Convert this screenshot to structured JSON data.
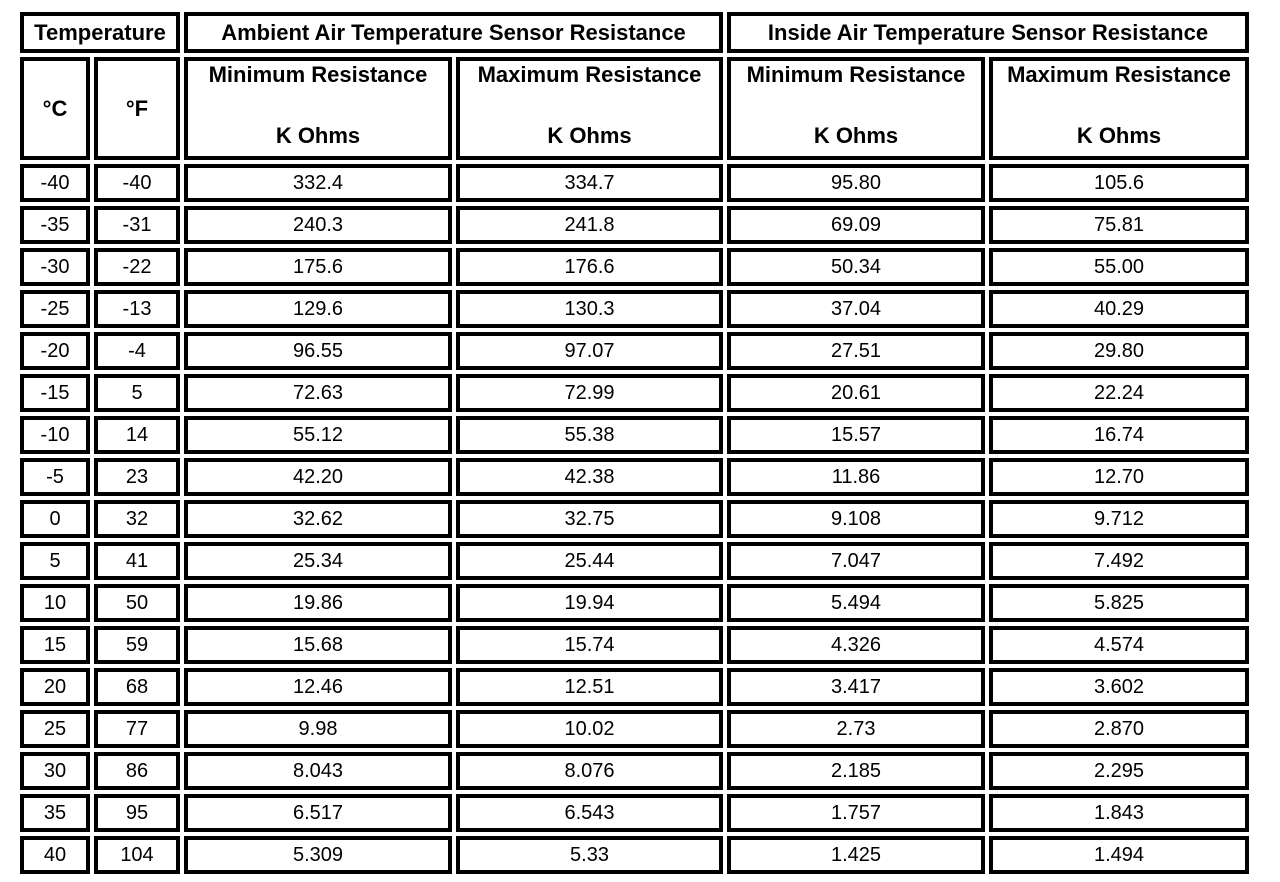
{
  "table": {
    "header_groups": [
      {
        "label": "Temperature"
      },
      {
        "label": "Ambient Air Temperature Sensor Resistance"
      },
      {
        "label": "Inside Air Temperature Sensor Resistance"
      }
    ],
    "subheaders": {
      "celsius": "°C",
      "fahrenheit": "°F",
      "ambient_min_title": "Minimum Resistance",
      "ambient_min_unit": "K Ohms",
      "ambient_max_title": "Maximum Resistance",
      "ambient_max_unit": "K Ohms",
      "inside_min_title": "Minimum Resistance",
      "inside_min_unit": "K Ohms",
      "inside_max_title": "Maximum Resistance",
      "inside_max_unit": "K Ohms"
    },
    "rows": [
      [
        "-40",
        "-40",
        "332.4",
        "334.7",
        "95.80",
        "105.6"
      ],
      [
        "-35",
        "-31",
        "240.3",
        "241.8",
        "69.09",
        "75.81"
      ],
      [
        "-30",
        "-22",
        "175.6",
        "176.6",
        "50.34",
        "55.00"
      ],
      [
        "-25",
        "-13",
        "129.6",
        "130.3",
        "37.04",
        "40.29"
      ],
      [
        "-20",
        "-4",
        "96.55",
        "97.07",
        "27.51",
        "29.80"
      ],
      [
        "-15",
        "5",
        "72.63",
        "72.99",
        "20.61",
        "22.24"
      ],
      [
        "-10",
        "14",
        "55.12",
        "55.38",
        "15.57",
        "16.74"
      ],
      [
        "-5",
        "23",
        "42.20",
        "42.38",
        "11.86",
        "12.70"
      ],
      [
        "0",
        "32",
        "32.62",
        "32.75",
        "9.108",
        "9.712"
      ],
      [
        "5",
        "41",
        "25.34",
        "25.44",
        "7.047",
        "7.492"
      ],
      [
        "10",
        "50",
        "19.86",
        "19.94",
        "5.494",
        "5.825"
      ],
      [
        "15",
        "59",
        "15.68",
        "15.74",
        "4.326",
        "4.574"
      ],
      [
        "20",
        "68",
        "12.46",
        "12.51",
        "3.417",
        "3.602"
      ],
      [
        "25",
        "77",
        "9.98",
        "10.02",
        "2.73",
        "2.870"
      ],
      [
        "30",
        "86",
        "8.043",
        "8.076",
        "2.185",
        "2.295"
      ],
      [
        "35",
        "95",
        "6.517",
        "6.543",
        "1.757",
        "1.843"
      ],
      [
        "40",
        "104",
        "5.309",
        "5.33",
        "1.425",
        "1.494"
      ]
    ],
    "colors": {
      "border": "#000000",
      "background": "#ffffff",
      "text": "#000000"
    }
  }
}
